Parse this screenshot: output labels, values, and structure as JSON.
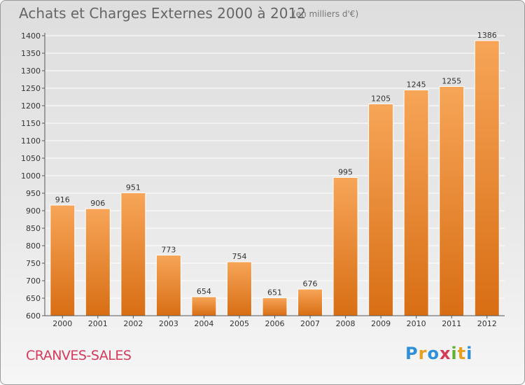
{
  "header": {
    "title": "Achats et Charges Externes 2000 à 2012",
    "subtitle": "(en milliers d'€)"
  },
  "footer": {
    "commune": "CRANVES-SALES",
    "logo_letters": [
      "P",
      "r",
      "o",
      "x",
      "i",
      "t",
      "i"
    ]
  },
  "colors": {
    "bar_top": "#f7a558",
    "bar_bottom": "#d86e14",
    "grid": "#ffffff",
    "axis": "#555555"
  },
  "chart_data": {
    "type": "bar",
    "title": "Achats et Charges Externes 2000 à 2012",
    "subtitle": "(en milliers d'€)",
    "categories": [
      "2000",
      "2001",
      "2002",
      "2003",
      "2004",
      "2005",
      "2006",
      "2007",
      "2008",
      "2009",
      "2010",
      "2011",
      "2012"
    ],
    "values": [
      916,
      906,
      951,
      773,
      654,
      754,
      651,
      676,
      995,
      1205,
      1245,
      1255,
      1386
    ],
    "xlabel": "",
    "ylabel": "",
    "ylim": [
      600,
      1400
    ],
    "ytick_step": 50,
    "grid": true,
    "legend": "none"
  }
}
